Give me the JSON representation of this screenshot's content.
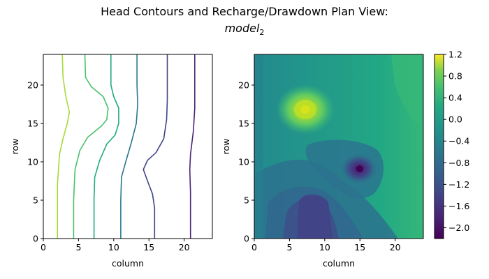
{
  "figure": {
    "title_line1": "Head Contours and Recharge/Drawdown Plan View:",
    "title_line2_base": "model",
    "title_line2_sub": "2"
  },
  "chart_data": [
    {
      "type": "contour",
      "xlabel": "column",
      "ylabel": "row",
      "xlim": [
        0,
        24
      ],
      "ylim": [
        0,
        24
      ],
      "xticks": [
        0,
        5,
        10,
        15,
        20
      ],
      "yticks": [
        0,
        5,
        10,
        15,
        20
      ],
      "contours": [
        {
          "color": "#a5db36",
          "points": [
            [
              2,
              0
            ],
            [
              2,
              7
            ],
            [
              2.3,
              11
            ],
            [
              2.8,
              13
            ],
            [
              3.4,
              15
            ],
            [
              3.7,
              16.5
            ],
            [
              3.2,
              18.5
            ],
            [
              2.8,
              21
            ],
            [
              2.7,
              24
            ]
          ]
        },
        {
          "color": "#4ac16d",
          "points": [
            [
              4.3,
              0
            ],
            [
              4.3,
              5
            ],
            [
              4.5,
              9
            ],
            [
              5.2,
              11.5
            ],
            [
              6.3,
              13.2
            ],
            [
              8.3,
              14.7
            ],
            [
              9,
              15.5
            ],
            [
              9.2,
              17
            ],
            [
              8.5,
              18.5
            ],
            [
              6.8,
              19.8
            ],
            [
              6,
              21
            ],
            [
              5.9,
              24
            ]
          ]
        },
        {
          "color": "#22a884",
          "points": [
            [
              7.2,
              0
            ],
            [
              7.2,
              5
            ],
            [
              7.3,
              8
            ],
            [
              8,
              10.2
            ],
            [
              9,
              12.3
            ],
            [
              10.2,
              13.5
            ],
            [
              10.7,
              15
            ],
            [
              10.7,
              17
            ],
            [
              10,
              18.5
            ],
            [
              9.6,
              20
            ],
            [
              9.6,
              24
            ]
          ]
        },
        {
          "color": "#2a788e",
          "points": [
            [
              11,
              0
            ],
            [
              11,
              5
            ],
            [
              11.1,
              8
            ],
            [
              11.7,
              10
            ],
            [
              12.5,
              12.5
            ],
            [
              13.2,
              15
            ],
            [
              13.4,
              17.5
            ],
            [
              13.3,
              20
            ],
            [
              13.3,
              24
            ]
          ]
        },
        {
          "color": "#414487",
          "points": [
            [
              15.8,
              0
            ],
            [
              15.8,
              4
            ],
            [
              15.5,
              5.8
            ],
            [
              14.8,
              7.5
            ],
            [
              14.2,
              9
            ],
            [
              14.8,
              10.2
            ],
            [
              16,
              11.2
            ],
            [
              17.1,
              13
            ],
            [
              17.5,
              15.5
            ],
            [
              17.6,
              18
            ],
            [
              17.6,
              24
            ]
          ]
        },
        {
          "color": "#482475",
          "points": [
            [
              20.9,
              0
            ],
            [
              20.9,
              6
            ],
            [
              20.8,
              9
            ],
            [
              20.9,
              11
            ],
            [
              21.3,
              14
            ],
            [
              21.5,
              17
            ],
            [
              21.5,
              24
            ]
          ]
        }
      ]
    },
    {
      "type": "contourf",
      "xlabel": "column",
      "ylabel": "row",
      "xlim": [
        0,
        24
      ],
      "ylim": [
        0,
        24
      ],
      "xticks": [
        0,
        5,
        10,
        15,
        20
      ],
      "yticks": [
        0,
        5,
        10,
        15,
        20
      ],
      "colorbar_ticks": [
        "1.2",
        "0.8",
        "0.4",
        "0.0",
        "−0.4",
        "−0.8",
        "−1.2",
        "−1.6",
        "−2.0"
      ],
      "colorbar_range": [
        -2.2,
        1.2
      ]
    }
  ]
}
